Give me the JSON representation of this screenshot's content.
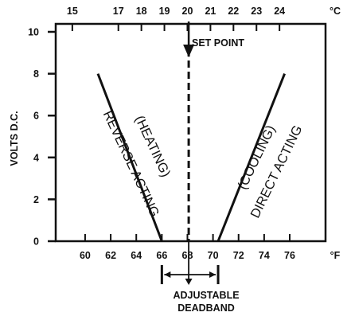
{
  "chart_data": {
    "type": "line",
    "title": "",
    "xlabel": "",
    "ylabel": "VOLTS D.C.",
    "x_unit_bottom": "°F",
    "x_unit_top": "°C",
    "xlim": [
      57.7,
      78.8
    ],
    "ylim": [
      0,
      10
    ],
    "x_ticks_bottom": [
      60,
      62,
      64,
      66,
      68,
      70,
      72,
      74,
      76
    ],
    "x_ticks_top": [
      {
        "label": "15",
        "f": 59.0
      },
      {
        "label": "17",
        "f": 62.6
      },
      {
        "label": "18",
        "f": 64.4
      },
      {
        "label": "19",
        "f": 66.2
      },
      {
        "label": "20",
        "f": 68.0
      },
      {
        "label": "21",
        "f": 69.8
      },
      {
        "label": "22",
        "f": 71.6
      },
      {
        "label": "23",
        "f": 73.4
      },
      {
        "label": "24",
        "f": 75.2
      }
    ],
    "y_ticks": [
      0,
      2,
      4,
      6,
      8,
      10
    ],
    "series": [
      {
        "name": "REVERSE ACTING (HEATING)",
        "x": [
          61.0,
          66.0
        ],
        "y": [
          8,
          0
        ],
        "color": "#111111"
      },
      {
        "name": "DIRECT ACTING (COOLING)",
        "x": [
          70.4,
          75.6
        ],
        "y": [
          0,
          8
        ],
        "color": "#111111"
      }
    ],
    "setpoint_f": 68.1,
    "deadband_f": [
      66.0,
      70.4
    ],
    "annotations": {
      "setpoint": "SET POINT",
      "deadband": [
        "ADJUSTABLE",
        "DEADBAND"
      ],
      "heating": [
        "(HEATING)",
        "REVERSE ACTING"
      ],
      "cooling": [
        "(COOLING)",
        "DIRECT ACTING"
      ]
    }
  }
}
